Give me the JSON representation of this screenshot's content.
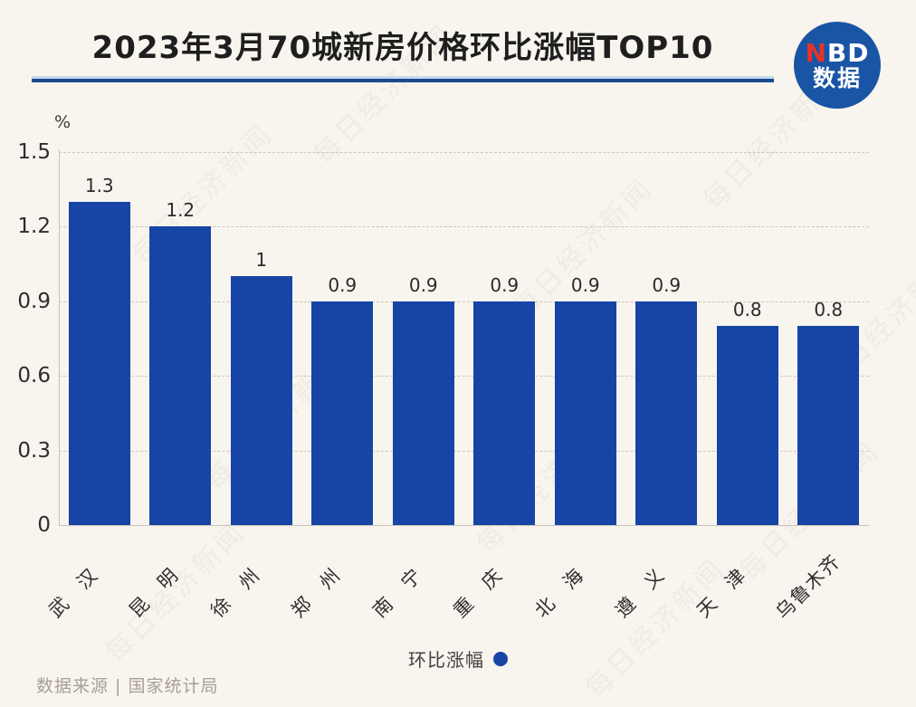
{
  "header": {
    "title": "2023年3月70城新房价格环比涨幅TOP10",
    "logo": {
      "n": "N",
      "bd": "BD",
      "line2": "数据"
    }
  },
  "chart_data": {
    "type": "bar",
    "title": "2023年3月70城新房价格环比涨幅TOP10",
    "categories": [
      "武汉",
      "昆明",
      "徐州",
      "郑州",
      "南宁",
      "重庆",
      "北海",
      "遵义",
      "天津",
      "乌鲁木齐"
    ],
    "values": [
      1.3,
      1.2,
      1.0,
      0.9,
      0.9,
      0.9,
      0.9,
      0.9,
      0.8,
      0.8
    ],
    "value_labels": [
      "1.3",
      "1.2",
      "1",
      "0.9",
      "0.9",
      "0.9",
      "0.9",
      "0.9",
      "0.8",
      "0.8"
    ],
    "unit_label": "%",
    "xlabel": "",
    "ylabel": "",
    "ylim": [
      0,
      1.5
    ],
    "yticks": [
      "0",
      "0.3",
      "0.6",
      "0.9",
      "1.2",
      "1.5"
    ],
    "grid": "dashed-horizontal",
    "bar_color": "#1745a5",
    "legend": {
      "label": "环比涨幅",
      "position": "bottom-center"
    }
  },
  "footer": {
    "source": "数据来源 | 国家统计局"
  },
  "watermark": {
    "text": "每日经济新闻"
  }
}
